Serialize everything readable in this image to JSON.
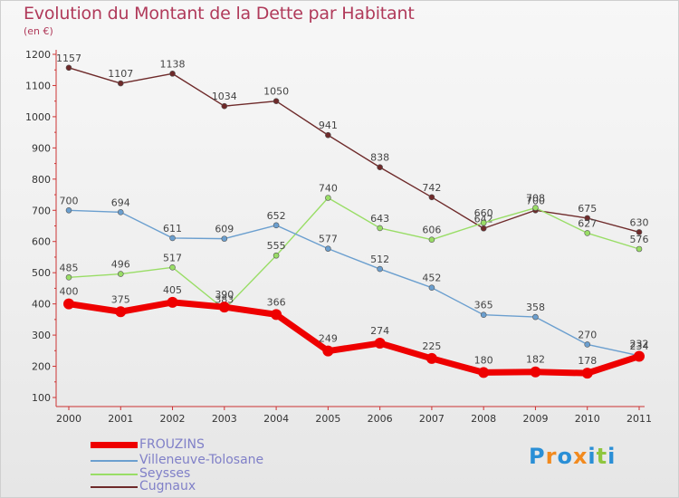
{
  "header": {
    "title": "Evolution du Montant de la Dette par Habitant",
    "subtitle": "(en €)"
  },
  "colors": {
    "title": "#b03a5a",
    "axis": "#cc3333",
    "tick_text": "#333333",
    "value_text": "#444444",
    "legend_text": "#8080c8"
  },
  "chart_data": {
    "type": "line",
    "title": "Evolution du Montant de la Dette par Habitant",
    "subtitle": "(en €)",
    "x": [
      "2000",
      "2001",
      "2002",
      "2003",
      "2004",
      "2005",
      "2006",
      "2007",
      "2008",
      "2009",
      "2010",
      "2011"
    ],
    "ylim": [
      100,
      1200
    ],
    "yticks": [
      100,
      200,
      300,
      400,
      500,
      600,
      700,
      800,
      900,
      1000,
      1100,
      1200
    ],
    "grid": false,
    "legend_position": "bottom-left",
    "series": [
      {
        "name": "FROUZINS",
        "color": "#ee0000",
        "emphasis": true,
        "values": [
          400,
          375,
          405,
          390,
          366,
          249,
          274,
          225,
          180,
          182,
          178,
          232
        ]
      },
      {
        "name": "Villeneuve-Tolosane",
        "color": "#6b9fcf",
        "emphasis": false,
        "values": [
          700,
          694,
          611,
          609,
          652,
          577,
          512,
          452,
          365,
          358,
          270,
          234
        ]
      },
      {
        "name": "Seysses",
        "color": "#99dd66",
        "emphasis": false,
        "values": [
          485,
          496,
          517,
          383,
          555,
          740,
          643,
          606,
          660,
          708,
          627,
          576
        ]
      },
      {
        "name": "Cugnaux",
        "color": "#6e2a2a",
        "emphasis": false,
        "values": [
          1157,
          1107,
          1138,
          1034,
          1050,
          941,
          838,
          742,
          642,
          700,
          675,
          630
        ]
      }
    ]
  },
  "legend": {
    "items": [
      {
        "label": "FROUZINS",
        "color": "#ee0000"
      },
      {
        "label": "Villeneuve-Tolosane",
        "color": "#6b9fcf"
      },
      {
        "label": "Seysses",
        "color": "#99dd66"
      },
      {
        "label": "Cugnaux",
        "color": "#6e2a2a"
      }
    ]
  },
  "logo": {
    "text": "Proxiti",
    "letters": [
      "P",
      "r",
      "o",
      "x",
      "i",
      "t",
      "i"
    ],
    "letter_colors": [
      "#2a8fd6",
      "#f28a1e",
      "#2a8fd6",
      "#f28a1e",
      "#2a8fd6",
      "#8fc63f",
      "#2a8fd6"
    ]
  }
}
